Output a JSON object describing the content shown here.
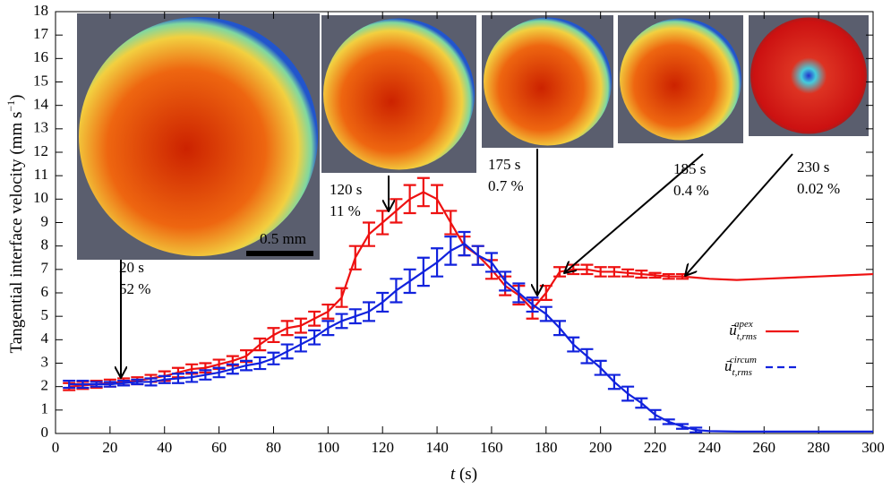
{
  "chart_data": {
    "type": "line",
    "ylabel": "Tangential interface velocity (mm s",
    "ylabel_sup": "−1",
    "ylabel_end": ")",
    "xlabel_var": "t",
    "xlabel_unit": "(s)",
    "x": [
      5,
      10,
      15,
      20,
      25,
      30,
      35,
      40,
      45,
      50,
      55,
      60,
      65,
      70,
      75,
      80,
      85,
      90,
      95,
      100,
      105,
      110,
      115,
      120,
      125,
      130,
      135,
      140,
      145,
      150,
      155,
      160,
      165,
      170,
      175,
      180,
      185,
      190,
      195,
      200,
      205,
      210,
      215,
      220,
      225,
      230,
      235,
      240,
      250,
      260,
      270,
      280,
      290,
      300
    ],
    "series": [
      {
        "name": "apex",
        "symbol": "ū",
        "subscript": "t,rms",
        "color": "#ee1111",
        "values": [
          2.0,
          2.05,
          2.1,
          2.15,
          2.2,
          2.25,
          2.35,
          2.45,
          2.6,
          2.75,
          2.8,
          2.95,
          3.1,
          3.3,
          3.8,
          4.2,
          4.5,
          4.6,
          4.9,
          5.2,
          5.8,
          7.5,
          8.5,
          9.0,
          9.5,
          10.0,
          10.3,
          10.0,
          9.0,
          8.0,
          7.6,
          7.0,
          6.3,
          5.9,
          5.3,
          6.0,
          6.9,
          7.0,
          7.0,
          6.9,
          6.9,
          6.85,
          6.8,
          6.75,
          6.7,
          6.7,
          6.65,
          6.6,
          6.55,
          6.6,
          6.65,
          6.7,
          6.75,
          6.8
        ],
        "errors": [
          0.15,
          0.15,
          0.15,
          0.15,
          0.15,
          0.15,
          0.15,
          0.2,
          0.2,
          0.2,
          0.2,
          0.2,
          0.2,
          0.25,
          0.25,
          0.3,
          0.3,
          0.3,
          0.3,
          0.3,
          0.4,
          0.5,
          0.5,
          0.5,
          0.5,
          0.6,
          0.6,
          0.6,
          0.5,
          0.4,
          0.4,
          0.4,
          0.4,
          0.4,
          0.4,
          0.3,
          0.2,
          0.2,
          0.2,
          0.2,
          0.2,
          0.15,
          0.15,
          0.1,
          0.1,
          0.1,
          null,
          null,
          null,
          null,
          null,
          null,
          null,
          null
        ]
      },
      {
        "name": "circum",
        "symbol": "ū",
        "subscript": "t,rms",
        "color": "#1122dd",
        "values": [
          2.1,
          2.1,
          2.1,
          2.1,
          2.15,
          2.2,
          2.2,
          2.3,
          2.35,
          2.4,
          2.5,
          2.6,
          2.75,
          2.9,
          3.0,
          3.2,
          3.5,
          3.8,
          4.1,
          4.5,
          4.8,
          5.0,
          5.2,
          5.6,
          6.1,
          6.5,
          6.9,
          7.3,
          7.8,
          8.1,
          7.6,
          7.3,
          6.5,
          6.0,
          5.5,
          5.1,
          4.5,
          3.8,
          3.3,
          2.8,
          2.2,
          1.7,
          1.3,
          0.8,
          0.5,
          0.3,
          0.15,
          0.1,
          0.08,
          0.08,
          0.08,
          0.08,
          0.08,
          0.08
        ],
        "errors": [
          0.15,
          0.15,
          0.1,
          0.1,
          0.1,
          0.1,
          0.15,
          0.15,
          0.2,
          0.2,
          0.2,
          0.2,
          0.2,
          0.2,
          0.25,
          0.25,
          0.3,
          0.3,
          0.3,
          0.3,
          0.3,
          0.3,
          0.4,
          0.4,
          0.5,
          0.5,
          0.6,
          0.6,
          0.6,
          0.5,
          0.4,
          0.4,
          0.4,
          0.4,
          0.3,
          0.3,
          0.3,
          0.3,
          0.3,
          0.3,
          0.3,
          0.3,
          0.2,
          0.2,
          0.1,
          0.1,
          0.1,
          null,
          null,
          null,
          null,
          null,
          null,
          null
        ]
      }
    ],
    "xlim": [
      0,
      300
    ],
    "xticks": [
      0,
      20,
      40,
      60,
      80,
      100,
      120,
      140,
      160,
      180,
      200,
      220,
      240,
      260,
      280,
      300
    ],
    "ylim": [
      0,
      18
    ],
    "yticks": [
      0,
      1,
      2,
      3,
      4,
      5,
      6,
      7,
      8,
      9,
      10,
      11,
      12,
      13,
      14,
      15,
      16,
      17,
      18
    ],
    "scale_bar": "0.5 mm",
    "annotations": [
      {
        "time": "20 s",
        "fraction": "52 %"
      },
      {
        "time": "120 s",
        "fraction": "11 %"
      },
      {
        "time": "175 s",
        "fraction": "0.7 %"
      },
      {
        "time": "185 s",
        "fraction": "0.4 %"
      },
      {
        "time": "230 s",
        "fraction": "0.02 %"
      }
    ]
  }
}
